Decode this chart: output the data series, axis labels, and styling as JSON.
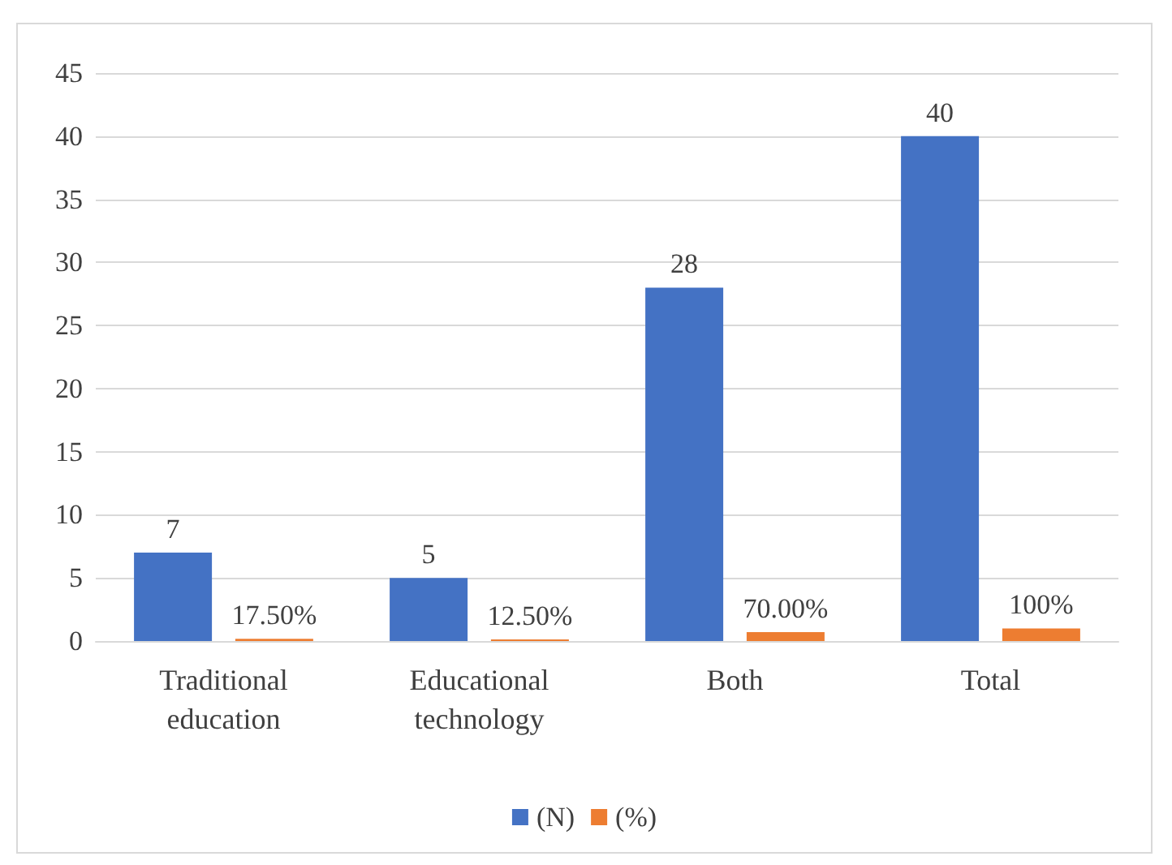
{
  "chart_data": {
    "type": "bar",
    "categories": [
      "Traditional education",
      "Educational technology",
      "Both",
      "Total"
    ],
    "series": [
      {
        "name": "(N)",
        "color": "#4472c4",
        "values": [
          7,
          5,
          28,
          40
        ],
        "value_labels": [
          "7",
          "5",
          "28",
          "40"
        ]
      },
      {
        "name": "(%)",
        "color": "#ed7d31",
        "values": [
          0.175,
          0.125,
          0.7,
          1
        ],
        "value_labels": [
          "17.50%",
          "12.50%",
          "70.00%",
          "100%"
        ]
      }
    ],
    "ylim": [
      0,
      45
    ],
    "yticks": [
      0,
      5,
      10,
      15,
      20,
      25,
      30,
      35,
      40,
      45
    ],
    "grid": true,
    "legend": "bottom"
  }
}
